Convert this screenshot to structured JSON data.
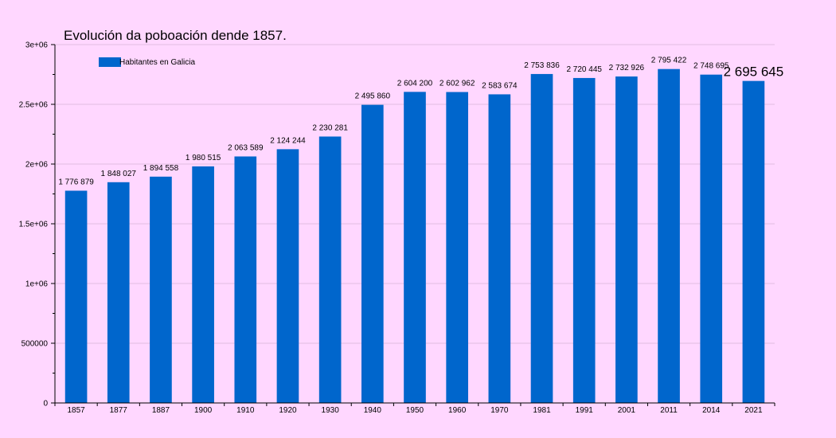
{
  "chart_data": {
    "type": "bar",
    "title": "Evolución da poboación dende 1857.",
    "xlabel": "",
    "ylabel": "",
    "ylim": [
      0,
      3000000
    ],
    "y_tick_labels": [
      "0",
      "500000",
      "1e+06",
      "1.5e+06",
      "2e+06",
      "2.5e+06",
      "3e+06"
    ],
    "grid": true,
    "legend_position": "top-left",
    "bar_color": "#0066cc",
    "background_color": "#ffd7ff",
    "categories": [
      "1857",
      "1877",
      "1887",
      "1900",
      "1910",
      "1920",
      "1930",
      "1940",
      "1950",
      "1960",
      "1970",
      "1981",
      "1991",
      "2001",
      "2011",
      "2014",
      "2021"
    ],
    "series": [
      {
        "name": "Habitantes en Galicia",
        "values": [
          1776879,
          1848027,
          1894558,
          1980515,
          2063589,
          2124244,
          2230281,
          2495860,
          2604200,
          2602962,
          2583674,
          2753836,
          2720445,
          2732926,
          2795422,
          2748695,
          2695645
        ],
        "data_labels": [
          "1 776 879",
          "1 848 027",
          "1 894 558",
          "1 980 515",
          "2 063 589",
          "2 124 244",
          "2 230 281",
          "2 495 860",
          "2 604 200",
          "2 602 962",
          "2 583 674",
          "2 753 836",
          "2 720 445",
          "2 732 926",
          "2 795 422",
          "2 748 695",
          "2 695 645"
        ]
      }
    ]
  }
}
